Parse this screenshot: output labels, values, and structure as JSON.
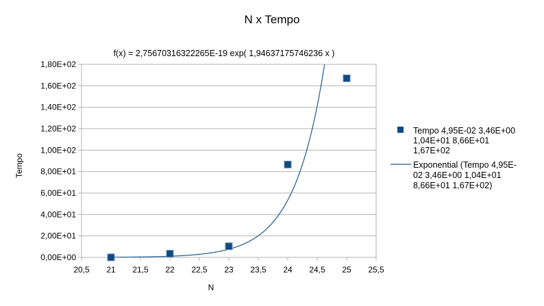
{
  "chart_data": {
    "type": "scatter",
    "title": "N x Tempo",
    "subtitle": "f(x) = 2,75670316322265E-19 exp( 1,94637175746236 x )",
    "xlabel": "N",
    "ylabel": "Tempo",
    "xlim": [
      20.5,
      25.5
    ],
    "ylim": [
      0,
      180
    ],
    "x_ticks": [
      "20,5",
      "21",
      "21,5",
      "22",
      "22,5",
      "23",
      "23,5",
      "24",
      "24,5",
      "25",
      "25,5"
    ],
    "y_ticks": [
      "0,00E+00",
      "2,00E+01",
      "4,00E+01",
      "6,00E+01",
      "8,00E+01",
      "1,00E+02",
      "1,20E+02",
      "1,40E+02",
      "1,60E+02",
      "1,80E+02"
    ],
    "grid": "horizontal",
    "legend_position": "right",
    "series": [
      {
        "name": "Tempo 4,95E-02 3,46E+00 1,04E+01 8,66E+01 1,67E+02",
        "legend_lines": [
          "Tempo 4,95E-02 3,46E+00",
          "1,04E+01 8,66E+01",
          "1,67E+02"
        ],
        "kind": "scatter",
        "color": "#0e4a84",
        "x": [
          21,
          22,
          23,
          24,
          25
        ],
        "y": [
          0.0495,
          3.46,
          10.4,
          86.6,
          167
        ]
      },
      {
        "name": "Exponential (Tempo 4,95E-02 3,46E+00 1,04E+01 8,66E+01 1,67E+02)",
        "legend_lines": [
          "Exponential (Tempo 4,95E-",
          "02 3,46E+00 1,04E+01",
          "8,66E+01 1,67E+02)"
        ],
        "kind": "trendline",
        "color": "#1c5a8c",
        "coefficient": 2.75670316322265e-19,
        "exponent": 1.94637175746236
      }
    ]
  }
}
